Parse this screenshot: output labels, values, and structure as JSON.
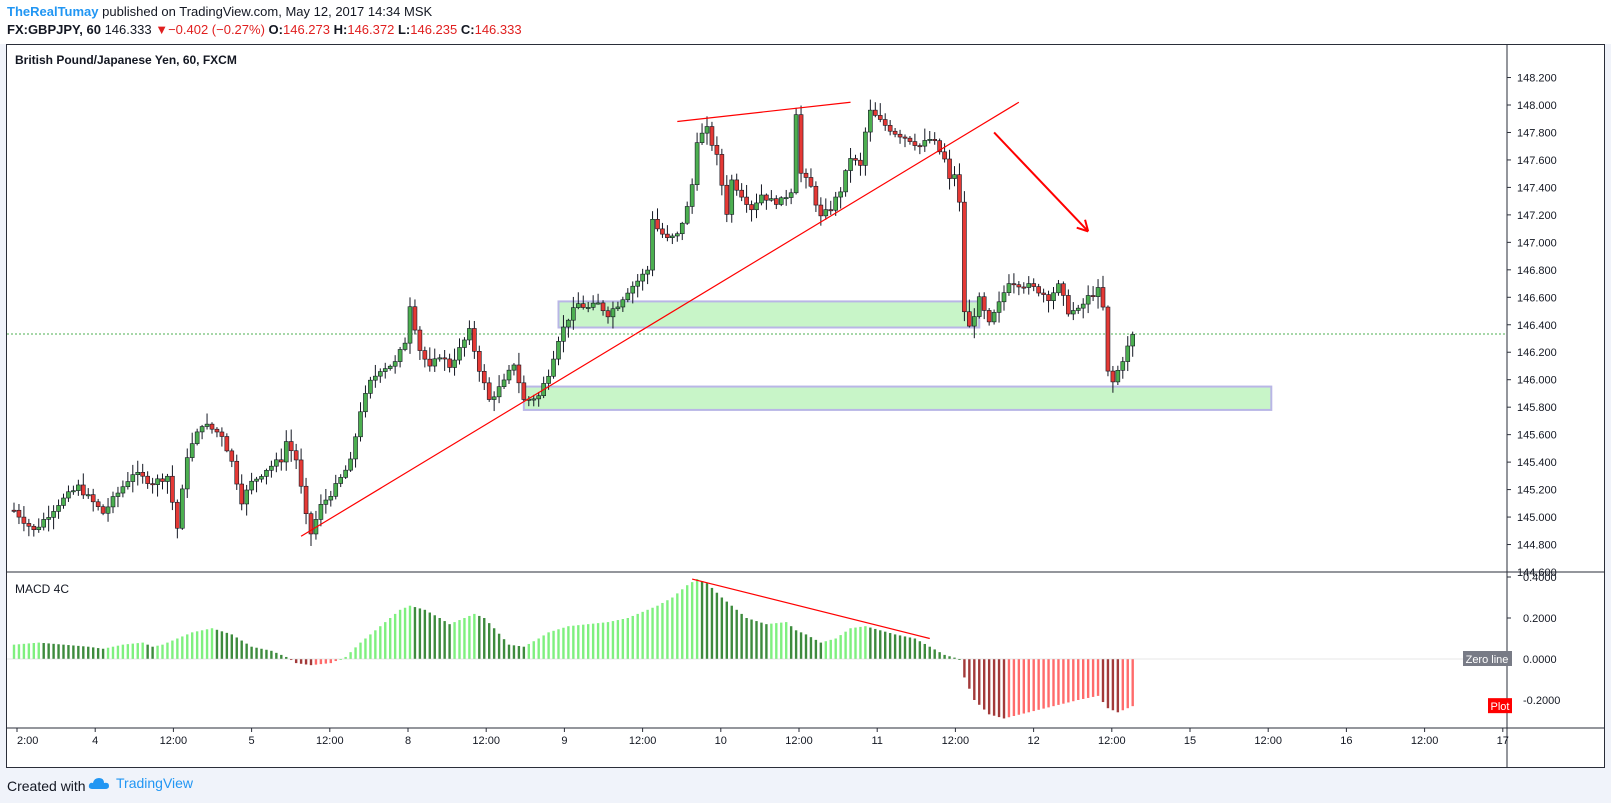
{
  "header": {
    "author": "TheRealTumay",
    "published": "published on TradingView.com, May 12, 2017 14:34 MSK",
    "symbol": "FX:GBPJPY, 60",
    "last": "146.333",
    "change": "−0.402 (−0.27%)",
    "o_label": "O:",
    "o": "146.273",
    "h_label": "H:",
    "h": "146.372",
    "l_label": "L:",
    "l": "146.235",
    "c_label": "C:",
    "c": "146.333"
  },
  "colors": {
    "up": "#4caf50",
    "down": "#e53935",
    "zone_fill": "#c8f5c8",
    "zone_border": "#b9b6e6",
    "trend": "#ff0000",
    "macd_up_strong": "#7ff07f",
    "macd_up_weak": "#3d8b3d",
    "macd_down_strong": "#ff6b6b",
    "macd_down_weak": "#a33a3a"
  },
  "footer": {
    "created": "Created with",
    "brand": "TradingView",
    "brand_icon": "cloud-icon"
  },
  "chart_data": [
    {
      "type": "candlestick",
      "title": "British Pound/Japanese Yen, 60, FXCM",
      "ylim": [
        144.45,
        148.27
      ],
      "y_ticks": [
        "148.200",
        "148.000",
        "147.800",
        "147.600",
        "147.400",
        "147.200",
        "147.000",
        "146.800",
        "146.600",
        "146.400",
        "146.200",
        "146.000",
        "145.800",
        "145.600",
        "145.400",
        "145.200",
        "145.000",
        "144.800",
        "144.600"
      ],
      "x_ticks": [
        "2:00",
        "4",
        "12:00",
        "5",
        "12:00",
        "8",
        "12:00",
        "9",
        "12:00",
        "10",
        "12:00",
        "11",
        "12:00",
        "12",
        "12:00",
        "15",
        "12:00",
        "16",
        "12:00",
        "17"
      ],
      "current_price": 146.333,
      "keypoints": [
        [
          0,
          145.05
        ],
        [
          4,
          144.9
        ],
        [
          9,
          145.1
        ],
        [
          13,
          145.22
        ],
        [
          18,
          145.03
        ],
        [
          24,
          145.32
        ],
        [
          28,
          145.25
        ],
        [
          31,
          145.3
        ],
        [
          33,
          144.92
        ],
        [
          35,
          145.45
        ],
        [
          38,
          145.68
        ],
        [
          42,
          145.6
        ],
        [
          44,
          145.4
        ],
        [
          46,
          145.12
        ],
        [
          48,
          145.25
        ],
        [
          51,
          145.35
        ],
        [
          54,
          145.42
        ],
        [
          55,
          145.55
        ],
        [
          57,
          145.42
        ],
        [
          59,
          145.0
        ],
        [
          60,
          144.88
        ],
        [
          62,
          145.08
        ],
        [
          65,
          145.22
        ],
        [
          68,
          145.4
        ],
        [
          70,
          145.78
        ],
        [
          72,
          145.98
        ],
        [
          74,
          146.08
        ],
        [
          77,
          146.12
        ],
        [
          79,
          146.28
        ],
        [
          80,
          146.55
        ],
        [
          82,
          146.22
        ],
        [
          84,
          146.08
        ],
        [
          86,
          146.18
        ],
        [
          88,
          146.1
        ],
        [
          90,
          146.22
        ],
        [
          92,
          146.35
        ],
        [
          94,
          146.08
        ],
        [
          96,
          145.85
        ],
        [
          99,
          145.98
        ],
        [
          101,
          146.12
        ],
        [
          103,
          145.85
        ],
        [
          106,
          145.88
        ],
        [
          108,
          146.05
        ],
        [
          110,
          146.3
        ],
        [
          112,
          146.45
        ],
        [
          114,
          146.55
        ],
        [
          116,
          146.52
        ],
        [
          118,
          146.55
        ],
        [
          120,
          146.48
        ],
        [
          122,
          146.55
        ],
        [
          124,
          146.65
        ],
        [
          126,
          146.72
        ],
        [
          128,
          146.8
        ],
        [
          129,
          147.18
        ],
        [
          130,
          147.1
        ],
        [
          132,
          147.02
        ],
        [
          134,
          147.05
        ],
        [
          136,
          147.25
        ],
        [
          137,
          147.42
        ],
        [
          138,
          147.75
        ],
        [
          140,
          147.82
        ],
        [
          141,
          147.72
        ],
        [
          142,
          147.62
        ],
        [
          144,
          147.22
        ],
        [
          145,
          147.45
        ],
        [
          147,
          147.35
        ],
        [
          149,
          147.25
        ],
        [
          151,
          147.35
        ],
        [
          153,
          147.3
        ],
        [
          155,
          147.3
        ],
        [
          157,
          147.38
        ],
        [
          158,
          147.95
        ],
        [
          159,
          147.5
        ],
        [
          161,
          147.4
        ],
        [
          163,
          147.18
        ],
        [
          165,
          147.25
        ],
        [
          167,
          147.38
        ],
        [
          169,
          147.62
        ],
        [
          171,
          147.55
        ],
        [
          172,
          147.8
        ],
        [
          173,
          147.95
        ],
        [
          175,
          147.88
        ],
        [
          178,
          147.8
        ],
        [
          181,
          147.75
        ],
        [
          183,
          147.7
        ],
        [
          185,
          147.75
        ],
        [
          186,
          147.72
        ],
        [
          188,
          147.6
        ],
        [
          189,
          147.45
        ],
        [
          190,
          147.5
        ],
        [
          191,
          147.28
        ],
        [
          192,
          146.5
        ],
        [
          193,
          146.38
        ],
        [
          195,
          146.58
        ],
        [
          197,
          146.4
        ],
        [
          199,
          146.55
        ],
        [
          201,
          146.72
        ],
        [
          203,
          146.7
        ],
        [
          205,
          146.68
        ],
        [
          207,
          146.65
        ],
        [
          209,
          146.6
        ],
        [
          211,
          146.68
        ],
        [
          213,
          146.5
        ],
        [
          215,
          146.5
        ],
        [
          217,
          146.6
        ],
        [
          219,
          146.65
        ],
        [
          220,
          146.52
        ],
        [
          221,
          146.05
        ],
        [
          222,
          145.98
        ],
        [
          224,
          146.15
        ],
        [
          226,
          146.32
        ]
      ],
      "zones": [
        {
          "from_bar": 110,
          "to_bar": 195,
          "low": 146.38,
          "high": 146.57
        },
        {
          "from_bar": 103,
          "to_bar": 254,
          "low": 145.78,
          "high": 145.95
        }
      ],
      "trendlines": [
        {
          "x1_bar": 58,
          "y1": 144.86,
          "x2_bar": 203,
          "y2": 148.02
        },
        {
          "x1_bar": 134,
          "y1": 147.88,
          "x2_bar": 169,
          "y2": 148.02
        }
      ],
      "arrow": {
        "x1_bar": 198,
        "y1": 147.8,
        "x2_bar": 217,
        "y2": 147.08
      }
    },
    {
      "type": "bar",
      "title": "MACD 4C",
      "ylim": [
        -0.28,
        0.41
      ],
      "y_ticks": [
        "0.4000",
        "0.2000",
        "0.0000",
        "-0.2000"
      ],
      "labels": {
        "zero": "Zero line",
        "plot": "Plot"
      },
      "keypoints": [
        [
          0,
          0.07
        ],
        [
          5,
          0.08
        ],
        [
          10,
          0.07
        ],
        [
          15,
          0.06
        ],
        [
          18,
          0.05
        ],
        [
          22,
          0.07
        ],
        [
          26,
          0.08
        ],
        [
          28,
          0.06
        ],
        [
          30,
          0.07
        ],
        [
          33,
          0.1
        ],
        [
          36,
          0.13
        ],
        [
          40,
          0.15
        ],
        [
          44,
          0.12
        ],
        [
          48,
          0.06
        ],
        [
          52,
          0.04
        ],
        [
          55,
          0.01
        ],
        [
          57,
          -0.02
        ],
        [
          60,
          -0.03
        ],
        [
          64,
          -0.02
        ],
        [
          67,
          0.01
        ],
        [
          70,
          0.08
        ],
        [
          74,
          0.16
        ],
        [
          78,
          0.24
        ],
        [
          80,
          0.26
        ],
        [
          83,
          0.24
        ],
        [
          86,
          0.2
        ],
        [
          88,
          0.17
        ],
        [
          91,
          0.2
        ],
        [
          93,
          0.22
        ],
        [
          95,
          0.2
        ],
        [
          97,
          0.15
        ],
        [
          100,
          0.07
        ],
        [
          103,
          0.06
        ],
        [
          106,
          0.1
        ],
        [
          108,
          0.13
        ],
        [
          112,
          0.16
        ],
        [
          116,
          0.17
        ],
        [
          120,
          0.18
        ],
        [
          124,
          0.2
        ],
        [
          127,
          0.23
        ],
        [
          130,
          0.26
        ],
        [
          133,
          0.3
        ],
        [
          136,
          0.36
        ],
        [
          138,
          0.39
        ],
        [
          140,
          0.37
        ],
        [
          143,
          0.3
        ],
        [
          148,
          0.2
        ],
        [
          152,
          0.17
        ],
        [
          156,
          0.18
        ],
        [
          158,
          0.14
        ],
        [
          160,
          0.12
        ],
        [
          163,
          0.08
        ],
        [
          166,
          0.1
        ],
        [
          169,
          0.15
        ],
        [
          172,
          0.16
        ],
        [
          175,
          0.14
        ],
        [
          178,
          0.12
        ],
        [
          182,
          0.1
        ],
        [
          185,
          0.06
        ],
        [
          188,
          0.02
        ],
        [
          191,
          0.0
        ],
        [
          192,
          -0.09
        ],
        [
          194,
          -0.2
        ],
        [
          197,
          -0.27
        ],
        [
          200,
          -0.29
        ],
        [
          205,
          -0.26
        ],
        [
          210,
          -0.23
        ],
        [
          215,
          -0.2
        ],
        [
          219,
          -0.18
        ],
        [
          221,
          -0.24
        ],
        [
          223,
          -0.26
        ],
        [
          226,
          -0.23
        ]
      ],
      "trendline": {
        "x1_bar": 137,
        "y1": 0.39,
        "x2_bar": 185,
        "y2": 0.1
      }
    }
  ]
}
